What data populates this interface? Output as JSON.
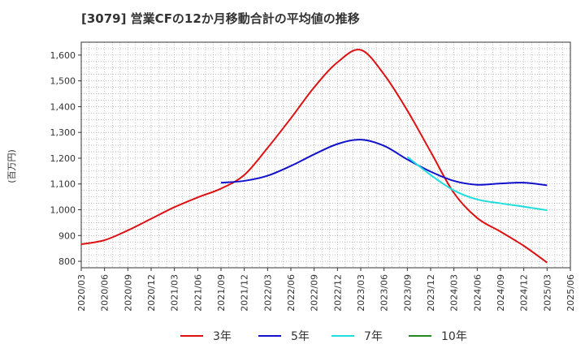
{
  "chart_data": {
    "type": "line",
    "title": "[3079]  営業CFの12か月移動合計の平均値の推移",
    "ylabel": "(百万円)",
    "xlabel": "",
    "ylim": [
      775,
      1650
    ],
    "yticks": [
      800,
      900,
      1000,
      1100,
      1200,
      1300,
      1400,
      1500,
      1600
    ],
    "ytick_labels": [
      "800",
      "900",
      "1,000",
      "1,100",
      "1,200",
      "1,300",
      "1,400",
      "1,500",
      "1,600"
    ],
    "x_start": "2020/03",
    "x_end": "2025/06",
    "xtick_labels": [
      "2020/03",
      "2020/06",
      "2020/09",
      "2020/12",
      "2021/03",
      "2021/06",
      "2021/09",
      "2021/12",
      "2022/03",
      "2022/06",
      "2022/09",
      "2022/12",
      "2023/03",
      "2023/06",
      "2023/09",
      "2023/12",
      "2024/03",
      "2024/06",
      "2024/09",
      "2024/12",
      "2025/03",
      "2025/06"
    ],
    "grid": true,
    "legend_position": "bottom",
    "series": [
      {
        "name": "3年",
        "color": "#dd1111",
        "x": [
          "2020/03",
          "2020/06",
          "2020/09",
          "2020/12",
          "2021/03",
          "2021/06",
          "2021/09",
          "2021/12",
          "2022/03",
          "2022/06",
          "2022/09",
          "2022/12",
          "2023/03",
          "2023/06",
          "2023/09",
          "2023/12",
          "2024/03",
          "2024/06",
          "2024/09",
          "2024/12",
          "2025/03"
        ],
        "values": [
          866,
          882,
          920,
          965,
          1010,
          1048,
          1082,
          1135,
          1240,
          1355,
          1475,
          1572,
          1620,
          1525,
          1385,
          1225,
          1065,
          968,
          915,
          860,
          795
        ]
      },
      {
        "name": "5年",
        "color": "#1111cc",
        "x": [
          "2021/09",
          "2021/12",
          "2022/03",
          "2022/06",
          "2022/09",
          "2022/12",
          "2023/03",
          "2023/06",
          "2023/09",
          "2023/12",
          "2024/03",
          "2024/06",
          "2024/09",
          "2024/12",
          "2025/03"
        ],
        "values": [
          1105,
          1112,
          1132,
          1170,
          1215,
          1255,
          1272,
          1248,
          1195,
          1148,
          1112,
          1097,
          1102,
          1105,
          1095
        ]
      },
      {
        "name": "7年",
        "color": "#22dddd",
        "x": [
          "2023/09",
          "2023/12",
          "2024/03",
          "2024/06",
          "2024/09",
          "2024/12",
          "2025/03"
        ],
        "values": [
          1205,
          1135,
          1075,
          1040,
          1025,
          1012,
          998
        ]
      },
      {
        "name": "10年",
        "color": "#228822",
        "x": [],
        "values": []
      }
    ]
  }
}
